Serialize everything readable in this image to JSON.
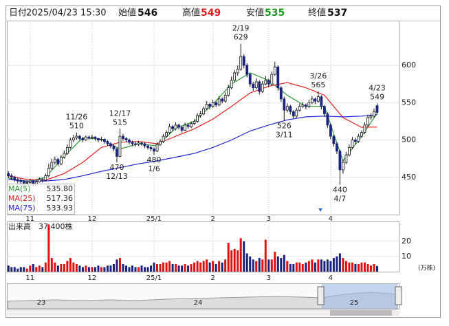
{
  "chart_data": {
    "type": "candlestick",
    "header": [
      {
        "label": "日付",
        "value": "2025/04/23 15:30"
      },
      {
        "label": "始値",
        "value": 546,
        "color": "#111111"
      },
      {
        "label": "高値",
        "value": 549,
        "color": "#e02020"
      },
      {
        "label": "安値",
        "value": 535,
        "color": "#1a9a1a"
      },
      {
        "label": "終値",
        "value": 537,
        "color": "#111111"
      }
    ],
    "xlim": [
      -0.5,
      126
    ],
    "xticks": [
      {
        "value": 7,
        "label": "11"
      },
      {
        "value": 27,
        "label": "12"
      },
      {
        "value": 47,
        "label": "25/1"
      },
      {
        "value": 66,
        "label": "2"
      },
      {
        "value": 84,
        "label": "3"
      },
      {
        "value": 104,
        "label": "4"
      }
    ],
    "ylim": [
      400,
      660
    ],
    "yticks": [
      450,
      500,
      550,
      600
    ],
    "grid": true,
    "up_color": "#ffffff",
    "down_color": "#1a237e",
    "outline_color": "#111111",
    "ohlc": [
      [
        455,
        458,
        449,
        452
      ],
      [
        452,
        455,
        447,
        450
      ],
      [
        450,
        452,
        444,
        447
      ],
      [
        447,
        449,
        442,
        445
      ],
      [
        445,
        448,
        441,
        444
      ],
      [
        444,
        446,
        439,
        442
      ],
      [
        442,
        446,
        440,
        443
      ],
      [
        443,
        448,
        441,
        445
      ],
      [
        445,
        446,
        438,
        441
      ],
      [
        441,
        447,
        440,
        444
      ],
      [
        444,
        450,
        443,
        447
      ],
      [
        447,
        449,
        443,
        446
      ],
      [
        446,
        455,
        445,
        452
      ],
      [
        452,
        468,
        450,
        462
      ],
      [
        462,
        475,
        460,
        470
      ],
      [
        470,
        478,
        467,
        474
      ],
      [
        474,
        476,
        465,
        468
      ],
      [
        468,
        480,
        466,
        477
      ],
      [
        477,
        486,
        475,
        482
      ],
      [
        482,
        494,
        480,
        490
      ],
      [
        490,
        503,
        488,
        500
      ],
      [
        500,
        507,
        497,
        503
      ],
      [
        503,
        510,
        500,
        505
      ],
      [
        505,
        507,
        499,
        502
      ],
      [
        502,
        504,
        497,
        500
      ],
      [
        500,
        506,
        499,
        504
      ],
      [
        504,
        506,
        500,
        503
      ],
      [
        503,
        507,
        501,
        504
      ],
      [
        504,
        505,
        499,
        502
      ],
      [
        502,
        503,
        497,
        500
      ],
      [
        500,
        504,
        498,
        501
      ],
      [
        501,
        502,
        495,
        498
      ],
      [
        498,
        500,
        492,
        495
      ],
      [
        495,
        497,
        489,
        492
      ],
      [
        492,
        494,
        485,
        488
      ],
      [
        488,
        490,
        470,
        478
      ],
      [
        478,
        515,
        477,
        505
      ],
      [
        505,
        508,
        499,
        502
      ],
      [
        502,
        504,
        497,
        500
      ],
      [
        500,
        502,
        494,
        497
      ],
      [
        497,
        499,
        492,
        495
      ],
      [
        495,
        498,
        491,
        494
      ],
      [
        494,
        499,
        492,
        496
      ],
      [
        496,
        498,
        492,
        495
      ],
      [
        495,
        497,
        489,
        492
      ],
      [
        492,
        494,
        487,
        490
      ],
      [
        490,
        492,
        485,
        488
      ],
      [
        488,
        490,
        480,
        485
      ],
      [
        485,
        497,
        484,
        494
      ],
      [
        494,
        501,
        492,
        498
      ],
      [
        498,
        508,
        496,
        505
      ],
      [
        505,
        513,
        503,
        510
      ],
      [
        510,
        522,
        508,
        518
      ],
      [
        518,
        520,
        512,
        515
      ],
      [
        515,
        524,
        513,
        520
      ],
      [
        520,
        522,
        514,
        517
      ],
      [
        517,
        519,
        510,
        513
      ],
      [
        513,
        523,
        512,
        520
      ],
      [
        520,
        522,
        515,
        518
      ],
      [
        518,
        525,
        516,
        522
      ],
      [
        522,
        528,
        520,
        525
      ],
      [
        525,
        536,
        523,
        533
      ],
      [
        533,
        539,
        530,
        535
      ],
      [
        535,
        545,
        533,
        542
      ],
      [
        542,
        552,
        540,
        548
      ],
      [
        548,
        550,
        541,
        545
      ],
      [
        545,
        554,
        543,
        550
      ],
      [
        550,
        552,
        544,
        547
      ],
      [
        547,
        559,
        545,
        555
      ],
      [
        555,
        557,
        549,
        552
      ],
      [
        552,
        564,
        550,
        560
      ],
      [
        560,
        574,
        558,
        570
      ],
      [
        570,
        585,
        568,
        580
      ],
      [
        580,
        594,
        578,
        590
      ],
      [
        590,
        600,
        586,
        595
      ],
      [
        595,
        629,
        593,
        612
      ],
      [
        612,
        615,
        596,
        600
      ],
      [
        600,
        603,
        584,
        588
      ],
      [
        588,
        590,
        571,
        575
      ],
      [
        575,
        578,
        566,
        570
      ],
      [
        570,
        583,
        568,
        578
      ],
      [
        578,
        580,
        561,
        565
      ],
      [
        565,
        579,
        563,
        575
      ],
      [
        575,
        586,
        573,
        580
      ],
      [
        580,
        582,
        571,
        575
      ],
      [
        575,
        592,
        573,
        588
      ],
      [
        588,
        605,
        586,
        598
      ],
      [
        598,
        600,
        566,
        570
      ],
      [
        570,
        572,
        551,
        555
      ],
      [
        555,
        558,
        526,
        540
      ],
      [
        540,
        549,
        537,
        545
      ],
      [
        545,
        547,
        534,
        538
      ],
      [
        538,
        540,
        529,
        532
      ],
      [
        532,
        543,
        530,
        540
      ],
      [
        540,
        549,
        538,
        545
      ],
      [
        545,
        551,
        543,
        547
      ],
      [
        547,
        549,
        541,
        545
      ],
      [
        545,
        554,
        543,
        550
      ],
      [
        550,
        559,
        548,
        555
      ],
      [
        555,
        557,
        548,
        552
      ],
      [
        552,
        565,
        550,
        558
      ],
      [
        558,
        560,
        541,
        545
      ],
      [
        545,
        547,
        531,
        535
      ],
      [
        535,
        537,
        516,
        520
      ],
      [
        520,
        522,
        501,
        505
      ],
      [
        505,
        507,
        491,
        495
      ],
      [
        495,
        497,
        481,
        485
      ],
      [
        485,
        487,
        440,
        460
      ],
      [
        460,
        474,
        455,
        470
      ],
      [
        470,
        484,
        468,
        480
      ],
      [
        480,
        494,
        478,
        490
      ],
      [
        490,
        504,
        488,
        500
      ],
      [
        500,
        503,
        494,
        498
      ],
      [
        498,
        508,
        496,
        505
      ],
      [
        505,
        513,
        503,
        510
      ],
      [
        510,
        524,
        508,
        520
      ],
      [
        520,
        534,
        518,
        530
      ],
      [
        530,
        536,
        527,
        532
      ],
      [
        532,
        542,
        530,
        538
      ],
      [
        546,
        549,
        535,
        537
      ]
    ],
    "ma": [
      {
        "name": "MA(5)",
        "color": "#2e9a3a",
        "legend_value": {
          "value": 535.8,
          "label": "535.80"
        },
        "x": [
          0,
          6,
          12,
          18,
          24,
          30,
          36,
          42,
          48,
          54,
          60,
          66,
          72,
          78,
          84,
          90,
          96,
          102,
          108,
          114,
          119
        ],
        "values": [
          449,
          444,
          450,
          478,
          503,
          501,
          488,
          495,
          492,
          516,
          525,
          548,
          575,
          590,
          580,
          560,
          545,
          545,
          472,
          505,
          535.8
        ]
      },
      {
        "name": "MA(25)",
        "color": "#e02020",
        "legend_value": {
          "value": 517.36,
          "label": "517.36"
        },
        "x": [
          0,
          6,
          12,
          18,
          24,
          30,
          36,
          42,
          48,
          54,
          60,
          66,
          72,
          78,
          84,
          90,
          96,
          102,
          108,
          114,
          119
        ],
        "values": [
          452,
          447,
          446,
          455,
          470,
          490,
          497,
          498,
          495,
          505,
          515,
          528,
          545,
          563,
          572,
          577,
          570,
          560,
          530,
          517,
          517.36
        ]
      },
      {
        "name": "MA(75)",
        "color": "#2020d0",
        "legend_value": {
          "value": 533.93,
          "label": "533.93"
        },
        "x": [
          0,
          6,
          12,
          18,
          24,
          30,
          36,
          42,
          48,
          54,
          60,
          66,
          72,
          78,
          84,
          90,
          96,
          102,
          108,
          114,
          119
        ],
        "values": [
          447,
          445,
          445,
          447,
          452,
          458,
          463,
          468,
          472,
          477,
          482,
          490,
          500,
          512,
          520,
          527,
          531,
          532,
          531,
          532,
          533.93
        ]
      }
    ],
    "annotations": [
      {
        "date": "11/26",
        "price": 510,
        "index": 22,
        "side": "high"
      },
      {
        "date": "12/17",
        "price": 515,
        "index": 36,
        "side": "high"
      },
      {
        "date": "2/19",
        "price": 629,
        "index": 75,
        "side": "high"
      },
      {
        "date": "3/26",
        "price": 565,
        "index": 100,
        "side": "high"
      },
      {
        "date": "4/23",
        "price": 549,
        "index": 119,
        "side": "high"
      },
      {
        "date": "12/13",
        "price": 470,
        "index": 35,
        "side": "low"
      },
      {
        "date": "1/6",
        "price": 480,
        "index": 47,
        "side": "low"
      },
      {
        "date": "3/11",
        "price": 526,
        "index": 89,
        "side": "low"
      },
      {
        "date": "4/7",
        "price": 440,
        "index": 107,
        "side": "low"
      }
    ],
    "volume": {
      "title": "出来高",
      "current": "37,400株",
      "unit": "(万株)",
      "ylim": [
        0,
        33
      ],
      "yticks": [
        10,
        20
      ],
      "up_color": "#e01010",
      "down_color": "#1a237e",
      "values": [
        4,
        3,
        3,
        2,
        3,
        3,
        2,
        4,
        5,
        3,
        4,
        3,
        6,
        31,
        9,
        6,
        4,
        5,
        5,
        7,
        9,
        6,
        5,
        4,
        3,
        4,
        3,
        3,
        3,
        4,
        3,
        3,
        4,
        4,
        5,
        8,
        9,
        5,
        4,
        3,
        4,
        3,
        3,
        4,
        3,
        3,
        4,
        6,
        5,
        5,
        6,
        6,
        7,
        5,
        5,
        4,
        4,
        5,
        4,
        5,
        6,
        7,
        6,
        7,
        8,
        6,
        7,
        5,
        7,
        6,
        8,
        19,
        14,
        15,
        14,
        22,
        20,
        12,
        10,
        8,
        7,
        9,
        8,
        21,
        8,
        8,
        13,
        10,
        9,
        11,
        7,
        5,
        5,
        6,
        6,
        5,
        6,
        7,
        8,
        6,
        8,
        8,
        7,
        8,
        7,
        9,
        10,
        12,
        9,
        7,
        6,
        6,
        5,
        5,
        6,
        6,
        5,
        4,
        5,
        3.74
      ]
    },
    "navigator": {
      "labels": [
        "23",
        "24",
        "25"
      ]
    }
  }
}
